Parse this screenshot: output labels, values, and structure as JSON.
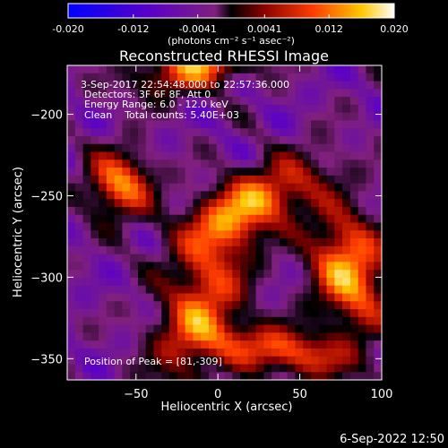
{
  "colorbar": {
    "ticks": [
      "-0.020",
      "-0.012",
      "-0.0041",
      "0.0041",
      "0.012",
      "0.020"
    ],
    "tick_values": [
      -0.02,
      -0.012,
      -0.0041,
      0.0041,
      0.012,
      0.02
    ],
    "unit_label": "(photons cm⁻² s⁻¹ asec⁻²)",
    "range": [
      -0.02,
      0.02
    ]
  },
  "footer_timestamp": "6-Sep-2022 12:50",
  "chart_data": {
    "type": "heatmap",
    "title": "Reconstructed RHESSI Image",
    "xlabel": "Heliocentric X (arcsec)",
    "ylabel": "Heliocentric Y (arcsec)",
    "xlim": [
      -92,
      100
    ],
    "ylim": [
      -363,
      -170
    ],
    "xticks": [
      -50,
      0,
      50,
      100
    ],
    "yticks": [
      -200,
      -250,
      -300,
      -350
    ],
    "info_lines": [
      "3-Sep-2017 22:54:48.000 to 22:57:36.000",
      "Detectors: 3F 6F 8F, Att 0",
      "Energy Range: 6.0 - 12.0 keV",
      "Clean    Total counts: 5.40E+03"
    ],
    "peak_label": "Position of Peak = [81,-309]",
    "peak": [
      81,
      -309
    ],
    "sources": [
      {
        "x": 20,
        "y": -256,
        "amp": 0.018,
        "sx": 32,
        "sy": 13,
        "theta": 28
      },
      {
        "x": 80,
        "y": -296,
        "amp": 0.02,
        "sx": 16,
        "sy": 26,
        "theta": 12
      },
      {
        "x": -10,
        "y": -318,
        "amp": 0.016,
        "sx": 16,
        "sy": 34,
        "theta": -20
      },
      {
        "x": -60,
        "y": -243,
        "amp": 0.018,
        "sx": 14,
        "sy": 14,
        "theta": 0
      },
      {
        "x": -12,
        "y": -170,
        "amp": 0.018,
        "sx": 26,
        "sy": 10,
        "theta": 15
      },
      {
        "x": 38,
        "y": -345,
        "amp": 0.016,
        "sx": 30,
        "sy": 10,
        "theta": -10
      }
    ],
    "background": -0.0055
  }
}
